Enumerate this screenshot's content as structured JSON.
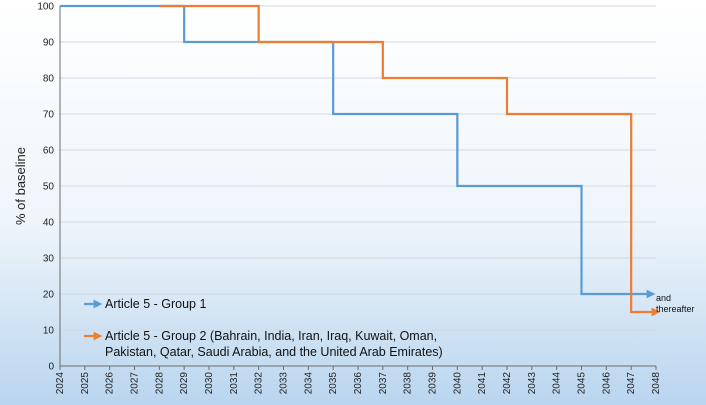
{
  "chart_data": {
    "type": "line",
    "step": true,
    "ylabel": "% of baseline",
    "xlabel": "",
    "xlim": [
      2024,
      2048
    ],
    "ylim": [
      0,
      100
    ],
    "y_ticks": [
      0,
      10,
      20,
      30,
      40,
      50,
      60,
      70,
      80,
      90,
      100
    ],
    "x_ticks": [
      "2024",
      "2025",
      "2026",
      "2027",
      "2028",
      "2029",
      "2030",
      "2031",
      "2032",
      "2033",
      "2034",
      "2035",
      "2036",
      "2037",
      "2038",
      "2039",
      "2040",
      "2041",
      "2042",
      "2043",
      "2044",
      "2045",
      "2046",
      "2047",
      "2048"
    ],
    "grid": "horizontal",
    "legend_position": "bottom-left",
    "series": [
      {
        "name": "Article 5 - Group 1",
        "name_lines": [
          "Article 5 - Group 1"
        ],
        "color": "#5b9bd5",
        "x": [
          2024,
          2029,
          2029,
          2035,
          2035,
          2040,
          2040,
          2045,
          2045,
          2047.8
        ],
        "values": [
          100,
          100,
          90,
          90,
          70,
          70,
          50,
          50,
          20,
          20
        ]
      },
      {
        "name": "Article 5 - Group 2 (Bahrain, India, Iran, Iraq, Kuwait, Oman, Pakistan, Qatar, Saudi Arabia, and the United Arab Emirates)",
        "name_lines": [
          "Article 5 - Group 2 (Bahrain, India, Iran, Iraq, Kuwait, Oman,",
          "Pakistan, Qatar, Saudi Arabia, and the United Arab Emirates)"
        ],
        "color": "#ed7d31",
        "x": [
          2028,
          2032,
          2032,
          2037,
          2037,
          2042,
          2042,
          2047,
          2047,
          2048
        ],
        "values": [
          100,
          100,
          90,
          90,
          80,
          80,
          70,
          70,
          15,
          15
        ]
      }
    ],
    "annotation": {
      "lines": [
        "and",
        "thereafter"
      ]
    }
  }
}
